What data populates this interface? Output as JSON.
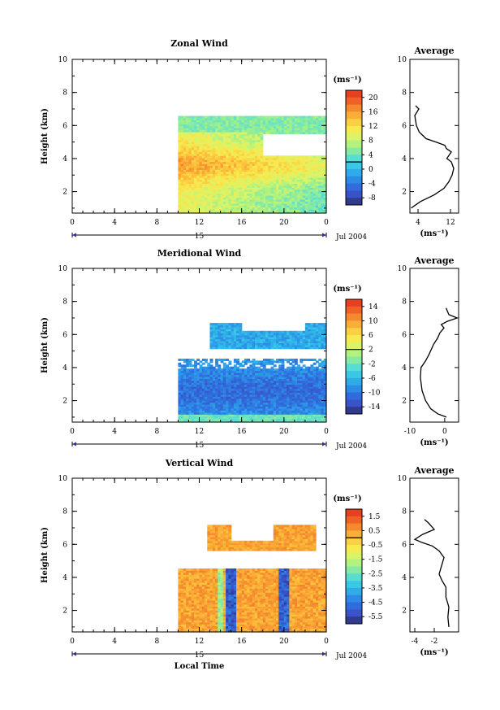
{
  "figure": {
    "xlabel": "Local Time",
    "date_label": "Jul 2004",
    "day_label": "15",
    "unit_label": "(ms⁻¹)",
    "avg_title": "Average",
    "y_axis_label": "Height (km)",
    "x_ticks": [
      "0",
      "4",
      "8",
      "12",
      "16",
      "20",
      "0"
    ],
    "y_ticks": [
      "2",
      "4",
      "6",
      "8",
      "10"
    ],
    "colors": {
      "palette": [
        "#2a2f6e",
        "#3b4fc4",
        "#2f6fe0",
        "#2c9ce8",
        "#35c5e8",
        "#5ee0d0",
        "#9ef08a",
        "#d6f56a",
        "#fbe84c",
        "#fbc23c",
        "#f6902f",
        "#ef5a26",
        "#e0301e"
      ],
      "zero_line": "#000000"
    }
  },
  "chart_data": [
    {
      "type": "heatmap",
      "title": "Zonal Wind",
      "xlabel": "Local Time",
      "ylabel": "Height (km)",
      "xlim": [
        0,
        24
      ],
      "ylim": [
        0.7,
        10
      ],
      "colorbar": {
        "ticks": [
          "20",
          "16",
          "12",
          "8",
          "4",
          "0",
          "-4",
          "-8"
        ],
        "range": [
          -10,
          22
        ],
        "unit": "(ms⁻¹)"
      },
      "profile": {
        "title": "Average",
        "xlabel": "(ms⁻¹)",
        "xlim": [
          2,
          14
        ],
        "x_ticks": [
          "4",
          "12"
        ],
        "points": [
          [
            2.3,
            1.0
          ],
          [
            4.6,
            1.4
          ],
          [
            8,
            1.8
          ],
          [
            10.4,
            2.2
          ],
          [
            11.6,
            2.6
          ],
          [
            12.4,
            3.0
          ],
          [
            12.8,
            3.4
          ],
          [
            12.2,
            3.8
          ],
          [
            11.1,
            4.0
          ],
          [
            12.2,
            4.4
          ],
          [
            11.0,
            4.6
          ],
          [
            10.6,
            4.8
          ],
          [
            8.4,
            5.0
          ],
          [
            6.0,
            5.2
          ],
          [
            4.3,
            5.6
          ],
          [
            3.6,
            6.0
          ],
          [
            3.2,
            6.6
          ],
          [
            4.2,
            7.0
          ],
          [
            3.4,
            7.2
          ]
        ]
      },
      "features": "positive winds 5-18 ms-1 between 1 and 6.5 km after 10 LT; strongest 14-18 near 3-4.5 km"
    },
    {
      "type": "heatmap",
      "title": "Meridional Wind",
      "xlabel": "Local Time",
      "ylabel": "Height (km)",
      "xlim": [
        0,
        24
      ],
      "ylim": [
        0.7,
        10
      ],
      "colorbar": {
        "ticks": [
          "14",
          "10",
          "6",
          "2",
          "-2",
          "-6",
          "-10",
          "-14"
        ],
        "range": [
          -16,
          16
        ],
        "unit": "(ms⁻¹)"
      },
      "profile": {
        "title": "Average",
        "xlabel": "(ms⁻¹)",
        "xlim": [
          -10,
          4
        ],
        "x_ticks": [
          "-10",
          "0"
        ],
        "points": [
          [
            0.5,
            1.0
          ],
          [
            -2,
            1.2
          ],
          [
            -4,
            1.5
          ],
          [
            -5.5,
            2.0
          ],
          [
            -6.5,
            2.6
          ],
          [
            -7.0,
            3.4
          ],
          [
            -6.8,
            4.0
          ],
          [
            -5.5,
            4.4
          ],
          [
            -4.5,
            4.8
          ],
          [
            -3.2,
            5.4
          ],
          [
            -2.0,
            5.8
          ],
          [
            -1.4,
            6.1
          ],
          [
            -0.2,
            6.4
          ],
          [
            -1,
            6.6
          ],
          [
            0.8,
            6.8
          ],
          [
            3.6,
            7.0
          ],
          [
            1.2,
            7.2
          ],
          [
            0.4,
            7.6
          ]
        ]
      },
      "features": "negative (southward) winds -4 to -12 ms-1 from 1 to 4.5 km after 10 LT, a layer near 5.5-6.5 km"
    },
    {
      "type": "heatmap",
      "title": "Vertical Wind",
      "xlabel": "Local Time",
      "ylabel": "Height (km)",
      "xlim": [
        0,
        24
      ],
      "ylim": [
        0.7,
        10
      ],
      "colorbar": {
        "ticks": [
          "1.5",
          "0.5",
          "-0.5",
          "-1.5",
          "-2.5",
          "-3.5",
          "-4.5",
          "-5.5"
        ],
        "range": [
          -6,
          2
        ],
        "unit": "(ms⁻¹)"
      },
      "profile": {
        "title": "Average",
        "xlabel": "(ms⁻¹)",
        "xlim": [
          -4.5,
          0.5
        ],
        "x_ticks": [
          "-4",
          "-2"
        ],
        "points": [
          [
            -0.5,
            1.0
          ],
          [
            -0.6,
            1.6
          ],
          [
            -0.5,
            2.2
          ],
          [
            -0.8,
            2.8
          ],
          [
            -0.8,
            3.4
          ],
          [
            -1.2,
            3.8
          ],
          [
            -1.5,
            4.2
          ],
          [
            -1.3,
            4.6
          ],
          [
            -1.0,
            5.2
          ],
          [
            -1.5,
            5.6
          ],
          [
            -2.2,
            5.9
          ],
          [
            -3.2,
            6.1
          ],
          [
            -4.0,
            6.3
          ],
          [
            -3.2,
            6.6
          ],
          [
            -2.0,
            6.9
          ],
          [
            -2.6,
            7.3
          ],
          [
            -3.0,
            7.5
          ]
        ]
      },
      "features": "near-zero vertical velocity after 10 LT; strong downdraft columns near 15 and 20 LT"
    }
  ]
}
